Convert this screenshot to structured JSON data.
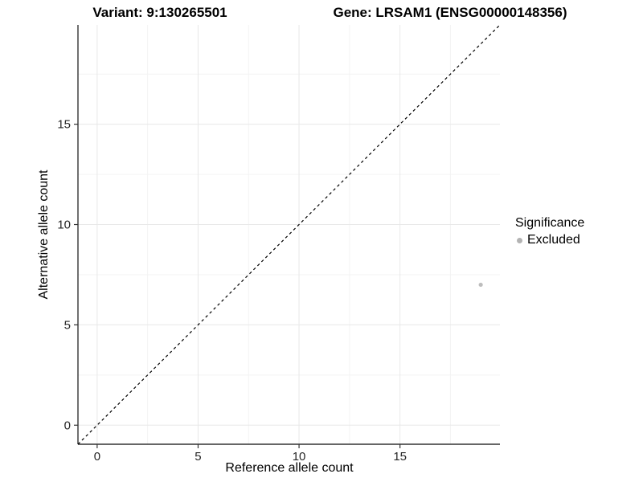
{
  "titles": {
    "variant": "Variant: 9:130265501",
    "gene": "Gene: LRSAM1 (ENSG00000148356)"
  },
  "chart_data": {
    "type": "scatter",
    "title_left": "Variant: 9:130265501",
    "title_right": "Gene: LRSAM1 (ENSG00000148356)",
    "xlabel": "Reference allele count",
    "ylabel": "Alternative allele count",
    "xlim": [
      -0.95,
      19.95
    ],
    "ylim": [
      -0.95,
      19.95
    ],
    "xticks": [
      0,
      5,
      10,
      15
    ],
    "yticks": [
      0,
      5,
      10,
      15
    ],
    "minor_ticks": [
      2.5,
      7.5,
      12.5,
      17.5
    ],
    "grid": true,
    "identity_line": {
      "type": "dashed",
      "equation": "y = x",
      "color": "#000000"
    },
    "points": [
      {
        "x": 19,
        "y": 7,
        "significance": "Excluded",
        "color": "#bdbdbd"
      }
    ],
    "legend": {
      "title": "Significance",
      "position": "right",
      "entries": [
        {
          "label": "Excluded",
          "color": "#b3b3b3"
        }
      ]
    }
  },
  "colors": {
    "axis_line": "#333333",
    "tick_label": "#262626",
    "grid_major": "#e8e8e8",
    "grid_minor": "#f3f3f3",
    "background": "#ffffff"
  }
}
